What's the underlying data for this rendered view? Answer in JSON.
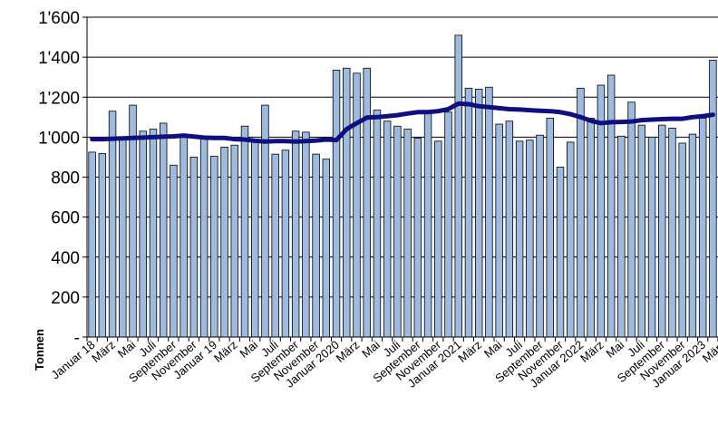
{
  "chart_data": {
    "type": "bar",
    "ylabel": "Tonnen",
    "ylim": [
      0,
      1600
    ],
    "yticks": [
      {
        "value": 0,
        "label": "-"
      },
      {
        "value": 200,
        "label": "200"
      },
      {
        "value": 400,
        "label": "400"
      },
      {
        "value": 600,
        "label": "600"
      },
      {
        "value": 800,
        "label": "800"
      },
      {
        "value": 1000,
        "label": "1'000"
      },
      {
        "value": 1200,
        "label": "1'200"
      },
      {
        "value": 1400,
        "label": "1'400"
      },
      {
        "value": 1600,
        "label": "1'600"
      }
    ],
    "grid": "horizontal",
    "legend": "none",
    "colors": {
      "bar_fill": "#9dbbe0",
      "bar_stroke": "#000000",
      "line": "#0f0f82",
      "grid": "#000000"
    },
    "x_tick_labels": [
      "Januar 18",
      "März",
      "Mai",
      "Juli",
      "September",
      "November",
      "Januar 19",
      "März",
      "Mai",
      "Juli",
      "September",
      "November",
      "Januar 2020",
      "März",
      "Mai",
      "Juli",
      "September",
      "November",
      "Januar 2021",
      "März",
      "Mai",
      "Juli",
      "September",
      "November",
      "Januar 2022",
      "März",
      "Mai",
      "Juli",
      "September",
      "November",
      "Januar 2023",
      "März"
    ],
    "series": [
      {
        "kind": "bar",
        "values": [
          925,
          918,
          1130,
          990,
          1160,
          1030,
          1040,
          1070,
          860,
          1000,
          900,
          990,
          905,
          950,
          960,
          1055,
          975,
          1160,
          915,
          935,
          1030,
          1025,
          915,
          890,
          1335,
          1345,
          1320,
          1345,
          1135,
          1080,
          1055,
          1040,
          995,
          1130,
          980,
          1125,
          1510,
          1245,
          1240,
          1250,
          1065,
          1080,
          980,
          985,
          1010,
          1095,
          850,
          975,
          1245,
          1095,
          1260,
          1310,
          1005,
          1175,
          1060,
          1000,
          1060,
          1045,
          970,
          1015,
          1095,
          1385
        ]
      },
      {
        "kind": "line",
        "values": [
          990,
          990,
          992,
          994,
          996,
          998,
          1000,
          1002,
          1004,
          1008,
          1003,
          998,
          996,
          996,
          990,
          988,
          982,
          978,
          980,
          980,
          978,
          980,
          983,
          988,
          985,
          1040,
          1070,
          1098,
          1100,
          1105,
          1110,
          1118,
          1125,
          1125,
          1130,
          1140,
          1168,
          1165,
          1155,
          1150,
          1145,
          1140,
          1138,
          1135,
          1132,
          1130,
          1125,
          1115,
          1100,
          1082,
          1070,
          1075,
          1076,
          1078,
          1085,
          1088,
          1090,
          1092,
          1092,
          1100,
          1105,
          1112
        ]
      }
    ]
  }
}
